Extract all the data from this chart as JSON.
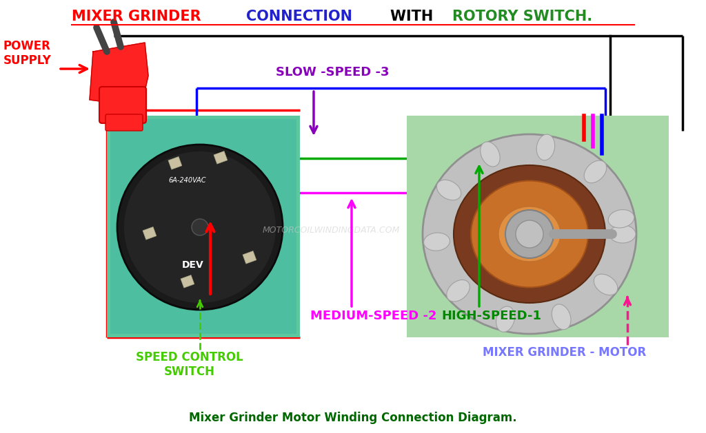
{
  "bg_color": "#FFFFFF",
  "title_segments": [
    {
      "text": "MIXER GRINDER ",
      "color": "#FF0000"
    },
    {
      "text": "CONNECTION ",
      "color": "#2222CC"
    },
    {
      "text": "WITH ",
      "color": "#000000"
    },
    {
      "text": "ROTORY SWITCH.",
      "color": "#228B22"
    }
  ],
  "title_underline_color": "#FF0000",
  "title_fontsize": 15,
  "subtitle": "Mixer Grinder Motor Winding Connection Diagram.",
  "subtitle_color": "#006600",
  "subtitle_fontsize": 12,
  "power_supply_text": "POWER\nSUPPLY",
  "power_supply_color": "#FF0000",
  "slow_speed_text": "SLOW -SPEED -3",
  "slow_speed_color": "#8800BB",
  "medium_speed_text": "MEDIUM-SPEED -2",
  "medium_speed_color": "#FF00FF",
  "high_speed_text": "HIGH-SPEED-1",
  "high_speed_color": "#008800",
  "speed_control_text": "SPEED CONTROL\nSWITCH",
  "speed_control_color": "#44CC00",
  "mixer_motor_text": "MIXER GRINDER - MOTOR",
  "mixer_motor_color": "#7777FF",
  "watermark": "MOTORCOILWINDINGDATA.COM",
  "wire_lw": 2.5,
  "black_wire": "#000000",
  "red_wire": "#FF0000",
  "blue_wire": "#0000FF",
  "magenta_wire": "#FF00FF",
  "green_wire": "#00AA00",
  "pink_dashed": "#FF1493",
  "plug_color": "#FF2222",
  "plug_pin_color": "#444444",
  "switch_bg": "#5DC8A0",
  "switch_dark": "#1C1C1C",
  "motor_bg": "#A8D8A8",
  "motor_gray": "#B0B0B0",
  "motor_copper": "#CD853F",
  "motor_dark_brown": "#6B3A2A"
}
